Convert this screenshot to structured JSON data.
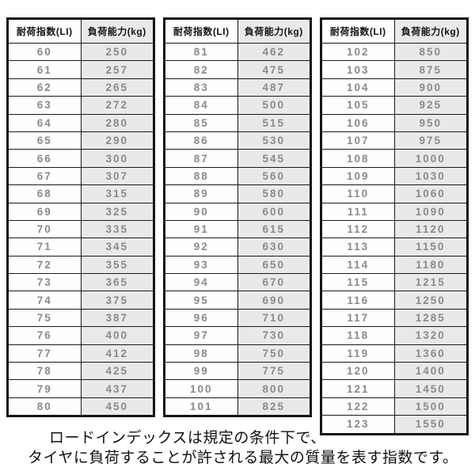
{
  "chart_data": [
    {
      "type": "table",
      "columns": [
        "耐荷指数(LI)",
        "負荷能力(kg)"
      ],
      "rows": [
        [
          60,
          250
        ],
        [
          61,
          257
        ],
        [
          62,
          265
        ],
        [
          63,
          272
        ],
        [
          64,
          280
        ],
        [
          65,
          290
        ],
        [
          66,
          300
        ],
        [
          67,
          307
        ],
        [
          68,
          315
        ],
        [
          69,
          325
        ],
        [
          70,
          335
        ],
        [
          71,
          345
        ],
        [
          72,
          355
        ],
        [
          73,
          365
        ],
        [
          74,
          375
        ],
        [
          75,
          387
        ],
        [
          76,
          400
        ],
        [
          77,
          412
        ],
        [
          78,
          425
        ],
        [
          79,
          437
        ],
        [
          80,
          450
        ]
      ]
    },
    {
      "type": "table",
      "columns": [
        "耐荷指数(LI)",
        "負荷能力(kg)"
      ],
      "rows": [
        [
          81,
          462
        ],
        [
          82,
          475
        ],
        [
          83,
          487
        ],
        [
          84,
          500
        ],
        [
          85,
          515
        ],
        [
          86,
          530
        ],
        [
          87,
          545
        ],
        [
          88,
          560
        ],
        [
          89,
          580
        ],
        [
          90,
          600
        ],
        [
          91,
          615
        ],
        [
          92,
          630
        ],
        [
          93,
          650
        ],
        [
          94,
          670
        ],
        [
          95,
          690
        ],
        [
          96,
          710
        ],
        [
          97,
          730
        ],
        [
          98,
          750
        ],
        [
          99,
          775
        ],
        [
          100,
          800
        ],
        [
          101,
          825
        ]
      ]
    },
    {
      "type": "table",
      "columns": [
        "耐荷指数(LI)",
        "負荷能力(kg)"
      ],
      "rows": [
        [
          102,
          850
        ],
        [
          103,
          875
        ],
        [
          104,
          900
        ],
        [
          105,
          925
        ],
        [
          106,
          950
        ],
        [
          107,
          975
        ],
        [
          108,
          1000
        ],
        [
          109,
          1030
        ],
        [
          110,
          1060
        ],
        [
          111,
          1090
        ],
        [
          112,
          1120
        ],
        [
          113,
          1150
        ],
        [
          114,
          1180
        ],
        [
          115,
          1215
        ],
        [
          116,
          1250
        ],
        [
          117,
          1285
        ],
        [
          118,
          1320
        ],
        [
          119,
          1360
        ],
        [
          120,
          1400
        ],
        [
          121,
          1450
        ],
        [
          122,
          1500
        ],
        [
          123,
          1550
        ]
      ]
    }
  ],
  "caption": {
    "line1": "ロードインデックスは規定の条件下で、",
    "line2": "タイヤに負荷することが許される最大の質量を表す指数です。"
  },
  "colors": {
    "table_border": "#141414",
    "li_column_bg": "#fefefe",
    "kg_column_bg": "#e9e9e9",
    "header_text": "#141414",
    "data_text": "#8a8a8a",
    "caption_text": "#111111"
  }
}
